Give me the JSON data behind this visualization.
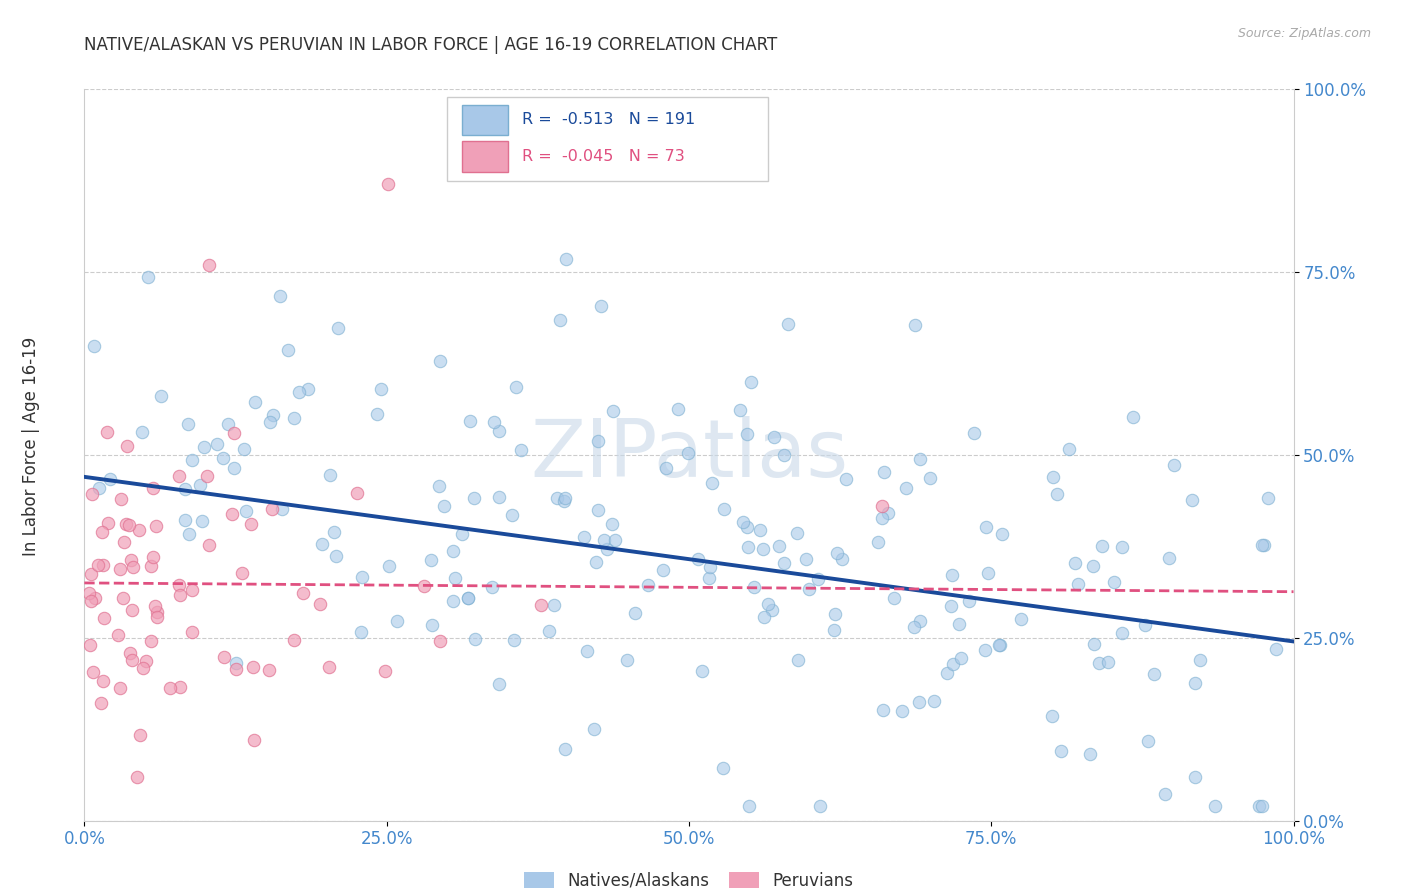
{
  "title": "NATIVE/ALASKAN VS PERUVIAN IN LABOR FORCE | AGE 16-19 CORRELATION CHART",
  "source": "Source: ZipAtlas.com",
  "ylabel": "In Labor Force | Age 16-19",
  "watermark": "ZIPatlas",
  "xlim": [
    0.0,
    1.0
  ],
  "ylim": [
    0.0,
    1.0
  ],
  "yticks": [
    0.0,
    0.25,
    0.5,
    0.75,
    1.0
  ],
  "xticks": [
    0.0,
    0.25,
    0.5,
    0.75,
    1.0
  ],
  "legend_labels": [
    "Natives/Alaskans",
    "Peruvians"
  ],
  "blue_color": "#a8c8e8",
  "blue_edge_color": "#7aaed0",
  "blue_line_color": "#1a4a9a",
  "pink_color": "#f0a0b8",
  "pink_edge_color": "#e07090",
  "pink_line_color": "#e05080",
  "R_blue": -0.513,
  "N_blue": 191,
  "R_pink": -0.045,
  "N_pink": 73,
  "blue_intercept": 0.47,
  "blue_slope": -0.225,
  "pink_intercept": 0.325,
  "pink_slope": -0.012,
  "background_color": "#ffffff",
  "grid_color": "#cccccc",
  "title_color": "#333333",
  "tick_label_color": "#4488cc",
  "source_color": "#aaaaaa",
  "legend_box_edge": "#cccccc",
  "watermark_color": "#c8d8e8",
  "watermark_alpha": 0.6
}
